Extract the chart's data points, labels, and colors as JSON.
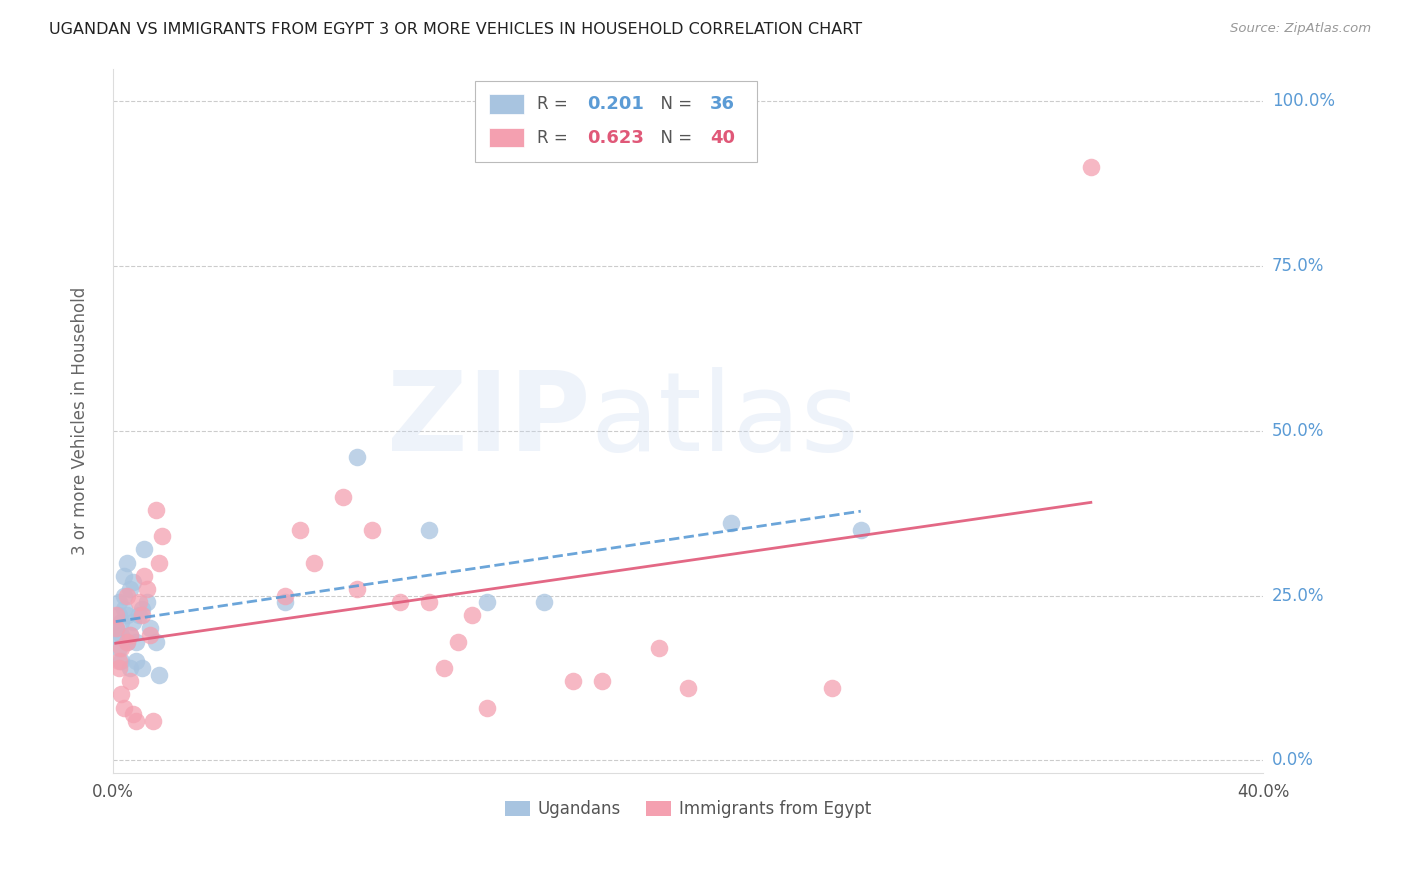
{
  "title": "UGANDAN VS IMMIGRANTS FROM EGYPT 3 OR MORE VEHICLES IN HOUSEHOLD CORRELATION CHART",
  "source": "Source: ZipAtlas.com",
  "ylabel": "3 or more Vehicles in Household",
  "watermark_zip": "ZIP",
  "watermark_atlas": "atlas",
  "xlim": [
    0.0,
    0.4
  ],
  "ylim": [
    -0.02,
    1.05
  ],
  "yticks": [
    0.0,
    0.25,
    0.5,
    0.75,
    1.0
  ],
  "ytick_labels": [
    "0.0%",
    "25.0%",
    "50.0%",
    "75.0%",
    "100.0%"
  ],
  "xtick_positions": [
    0.0,
    0.05,
    0.1,
    0.15,
    0.2,
    0.25,
    0.3,
    0.35,
    0.4
  ],
  "xtick_labels": [
    "0.0%",
    "",
    "",
    "",
    "",
    "",
    "",
    "",
    "40.0%"
  ],
  "ugandan_R": 0.201,
  "ugandan_N": 36,
  "egypt_R": 0.623,
  "egypt_N": 40,
  "ugandan_color": "#a8c4e0",
  "egypt_color": "#f4a0b0",
  "ugandan_line_color": "#5b9bd5",
  "egypt_line_color": "#e05878",
  "background_color": "#ffffff",
  "grid_color": "#cccccc",
  "axis_label_color": "#666666",
  "ytick_color": "#5b9bd5",
  "ugandan_x": [
    0.001,
    0.001,
    0.002,
    0.002,
    0.002,
    0.003,
    0.003,
    0.003,
    0.004,
    0.004,
    0.004,
    0.005,
    0.005,
    0.005,
    0.006,
    0.006,
    0.006,
    0.007,
    0.007,
    0.008,
    0.008,
    0.009,
    0.01,
    0.01,
    0.011,
    0.012,
    0.013,
    0.015,
    0.016,
    0.06,
    0.085,
    0.11,
    0.13,
    0.15,
    0.215,
    0.26
  ],
  "ugandan_y": [
    0.2,
    0.19,
    0.22,
    0.24,
    0.17,
    0.19,
    0.21,
    0.15,
    0.23,
    0.28,
    0.25,
    0.3,
    0.22,
    0.18,
    0.26,
    0.14,
    0.19,
    0.27,
    0.21,
    0.15,
    0.18,
    0.22,
    0.23,
    0.14,
    0.32,
    0.24,
    0.2,
    0.18,
    0.13,
    0.24,
    0.46,
    0.35,
    0.24,
    0.24,
    0.36,
    0.35
  ],
  "egypt_x": [
    0.001,
    0.001,
    0.002,
    0.002,
    0.003,
    0.003,
    0.004,
    0.005,
    0.005,
    0.006,
    0.006,
    0.007,
    0.008,
    0.009,
    0.01,
    0.011,
    0.012,
    0.013,
    0.014,
    0.015,
    0.016,
    0.017,
    0.06,
    0.065,
    0.07,
    0.08,
    0.085,
    0.09,
    0.1,
    0.11,
    0.115,
    0.12,
    0.125,
    0.13,
    0.16,
    0.17,
    0.19,
    0.2,
    0.25,
    0.34
  ],
  "egypt_y": [
    0.22,
    0.2,
    0.15,
    0.14,
    0.1,
    0.17,
    0.08,
    0.18,
    0.25,
    0.12,
    0.19,
    0.07,
    0.06,
    0.24,
    0.22,
    0.28,
    0.26,
    0.19,
    0.06,
    0.38,
    0.3,
    0.34,
    0.25,
    0.35,
    0.3,
    0.4,
    0.26,
    0.35,
    0.24,
    0.24,
    0.14,
    0.18,
    0.22,
    0.08,
    0.12,
    0.12,
    0.17,
    0.11,
    0.11,
    0.9
  ]
}
